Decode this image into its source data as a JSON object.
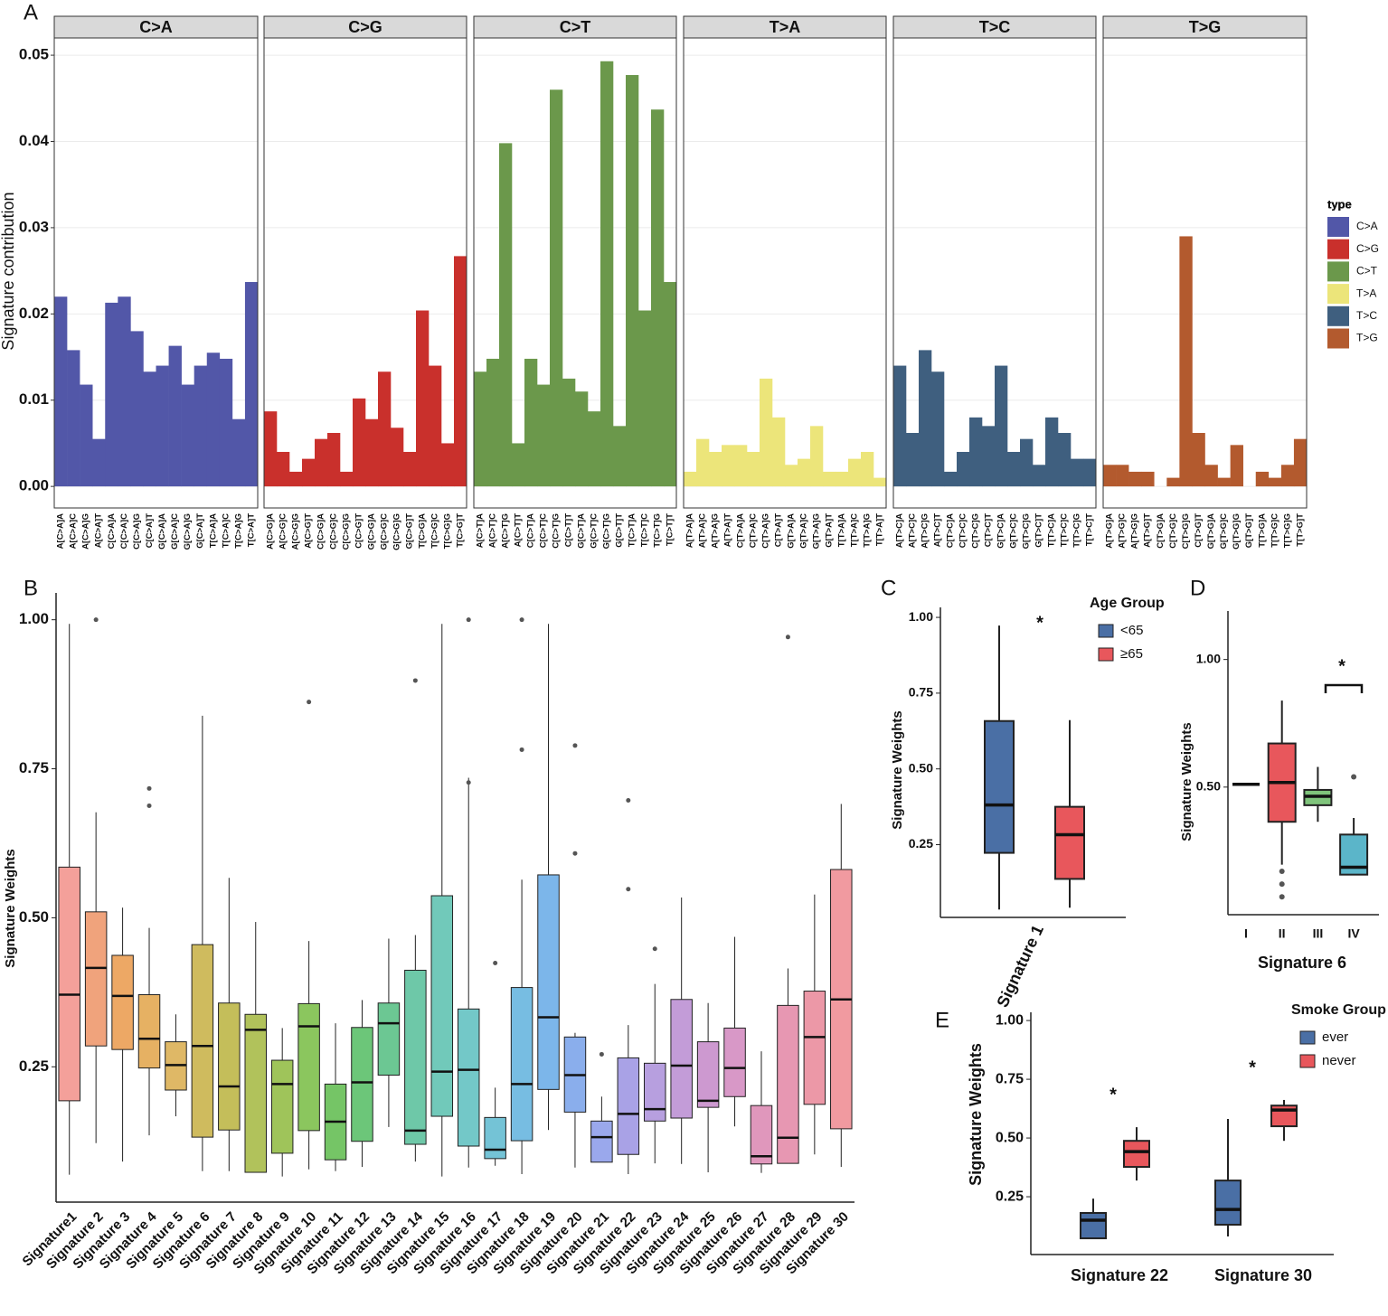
{
  "chart_data": [
    {
      "type": "bar",
      "panel": "A",
      "ylabel": "Signature contribution",
      "ylim": [
        -0.0025,
        0.052
      ],
      "yticks": [
        {
          "value": 0,
          "label": "0.00"
        },
        0.01,
        0.02,
        0.03,
        0.04,
        0.05
      ],
      "grid": true,
      "legend_title": "type",
      "facets": [
        {
          "title": "C>A",
          "color": "#5257a8",
          "categories": [
            "A[C>A]A",
            "A[C>A]C",
            "A[C>A]G",
            "A[C>A]T",
            "C[C>A]A",
            "C[C>A]C",
            "C[C>A]G",
            "C[C>A]T",
            "G[C>A]A",
            "G[C>A]C",
            "G[C>A]G",
            "G[C>A]T",
            "T[C>A]A",
            "T[C>A]C",
            "T[C>A]G",
            "T[C>A]T"
          ],
          "values": [
            0.022,
            0.0158,
            0.0118,
            0.0055,
            0.0213,
            0.022,
            0.018,
            0.0133,
            0.014,
            0.0163,
            0.0118,
            0.014,
            0.0155,
            0.0148,
            0.0078,
            0.0237
          ]
        },
        {
          "title": "C>G",
          "color": "#c9302c",
          "categories": [
            "A[C>G]A",
            "A[C>G]C",
            "A[C>G]G",
            "A[C>G]T",
            "C[C>G]A",
            "C[C>G]C",
            "C[C>G]G",
            "C[C>G]T",
            "G[C>G]A",
            "G[C>G]C",
            "G[C>G]G",
            "G[C>G]T",
            "T[C>G]A",
            "T[C>G]C",
            "T[C>G]G",
            "T[C>G]T"
          ],
          "values": [
            0.0087,
            0.004,
            0.0017,
            0.0032,
            0.0055,
            0.0062,
            0.0017,
            0.0102,
            0.0078,
            0.0133,
            0.0068,
            0.004,
            0.0204,
            0.014,
            0.005,
            0.0267
          ]
        },
        {
          "title": "C>T",
          "color": "#6b984b",
          "categories": [
            "A[C>T]A",
            "A[C>T]C",
            "A[C>T]G",
            "A[C>T]T",
            "C[C>T]A",
            "C[C>T]C",
            "C[C>T]G",
            "C[C>T]T",
            "G[C>T]A",
            "G[C>T]C",
            "G[C>T]G",
            "G[C>T]T",
            "T[C>T]A",
            "T[C>T]C",
            "T[C>T]G",
            "T[C>T]T"
          ],
          "values": [
            0.0133,
            0.0148,
            0.0398,
            0.005,
            0.0148,
            0.0118,
            0.046,
            0.0125,
            0.011,
            0.0087,
            0.0493,
            0.007,
            0.0477,
            0.0204,
            0.0437,
            0.0237
          ]
        },
        {
          "title": "T>A",
          "color": "#ece57a",
          "categories": [
            "A[T>A]A",
            "A[T>A]C",
            "A[T>A]G",
            "A[T>A]T",
            "C[T>A]A",
            "C[T>A]C",
            "C[T>A]G",
            "C[T>A]T",
            "G[T>A]A",
            "G[T>A]C",
            "G[T>A]G",
            "G[T>A]T",
            "T[T>A]A",
            "T[T>A]C",
            "T[T>A]G",
            "T[T>A]T"
          ],
          "values": [
            0.0017,
            0.0055,
            0.004,
            0.0048,
            0.0048,
            0.004,
            0.0125,
            0.008,
            0.0025,
            0.0032,
            0.007,
            0.0017,
            0.0017,
            0.0032,
            0.004,
            0.001
          ]
        },
        {
          "title": "T>C",
          "color": "#3f5f7f",
          "categories": [
            "A[T>C]A",
            "A[T>C]C",
            "A[T>C]G",
            "A[T>C]T",
            "C[T>C]A",
            "C[T>C]C",
            "C[T>C]G",
            "C[T>C]T",
            "G[T>C]A",
            "G[T>C]C",
            "G[T>C]G",
            "G[T>C]T",
            "T[T>C]A",
            "T[T>C]C",
            "T[T>C]G",
            "T[T>C]T"
          ],
          "values": [
            0.014,
            0.0062,
            0.0158,
            0.0133,
            0.0017,
            0.004,
            0.008,
            0.007,
            0.014,
            0.004,
            0.0055,
            0.0025,
            0.008,
            0.0062,
            0.0032,
            0.0032
          ]
        },
        {
          "title": "T>G",
          "color": "#b35a2e",
          "categories": [
            "A[T>G]A",
            "A[T>G]C",
            "A[T>G]G",
            "A[T>G]T",
            "C[T>G]A",
            "C[T>G]C",
            "C[T>G]G",
            "C[T>G]T",
            "G[T>G]A",
            "G[T>G]C",
            "G[T>G]G",
            "G[T>G]T",
            "T[T>G]A",
            "T[T>G]C",
            "T[T>G]G",
            "T[T>G]T"
          ],
          "values": [
            0.0025,
            0.0025,
            0.0017,
            0.0017,
            0,
            0.001,
            0.029,
            0.0062,
            0.0025,
            0.001,
            0.0048,
            0,
            0.0017,
            0.001,
            0.0025,
            0.0055
          ]
        }
      ]
    },
    {
      "type": "box",
      "panel": "B",
      "ylabel": "Signature Weights",
      "ylim": [
        0.023,
        1.045
      ],
      "yticks": [
        0.25,
        {
          "value": 0.5,
          "label": "0.50"
        },
        0.75,
        {
          "value": 1,
          "label": "1.00"
        }
      ],
      "categories": [
        "Signature1",
        "Signature 2",
        "Signature 3",
        "Signature 4",
        "Signature 5",
        "Signature 6",
        "Signature 7",
        "Signature 8",
        "Signature 9",
        "Signature 10",
        "Signature 11",
        "Signature 12",
        "Signature 13",
        "Signature 14",
        "Signature 15",
        "Signature 16",
        "Signature 17",
        "Signature 18",
        "Signature 19",
        "Signature 20",
        "Signature 21",
        "Signature 22",
        "Signature 23",
        "Signature 24",
        "Signature 25",
        "Signature 26",
        "Signature 27",
        "Signature 28",
        "Signature 29",
        "Signature 30"
      ],
      "series": [
        {
          "colors": [
            "#f4a09a",
            "#f0a37c",
            "#eda865",
            "#e6b163",
            "#dfb866",
            "#cfbb5e",
            "#c4be5a",
            "#b1c25b",
            "#9fc45a",
            "#8bc65e",
            "#75c566",
            "#6cc679",
            "#6cc793",
            "#6ec8a8",
            "#71c9ba",
            "#73c8c8",
            "#74c3d6",
            "#77bde2",
            "#7cb6ea",
            "#8aaeec",
            "#9aa8ec",
            "#a9a2e6",
            "#b79fdf",
            "#c39cd8",
            "#cd99d0",
            "#d898c7",
            "#e097bc",
            "#e797b2",
            "#ec98a7",
            "#f19aa0"
          ],
          "min": [
            0.069,
            0.122,
            0.091,
            0.135,
            0.167,
            0.075,
            0.075,
            0.073,
            0.066,
            0.078,
            0.075,
            0.082,
            0.149,
            0.091,
            0.066,
            0.081,
            0.084,
            0.07,
            0.144,
            0.081,
            0.09,
            0.07,
            0.088,
            0.087,
            0.073,
            0.15,
            0.072,
            0.088,
            0.103,
            0.082
          ],
          "q1": [
            0.193,
            0.285,
            0.279,
            0.248,
            0.211,
            0.132,
            0.144,
            0.073,
            0.105,
            0.143,
            0.094,
            0.125,
            0.236,
            0.12,
            0.167,
            0.117,
            0.096,
            0.126,
            0.212,
            0.174,
            0.09,
            0.103,
            0.159,
            0.164,
            0.182,
            0.2,
            0.087,
            0.088,
            0.187,
            0.146
          ],
          "median": [
            0.371,
            0.416,
            0.369,
            0.297,
            0.253,
            0.285,
            0.217,
            0.312,
            0.221,
            0.318,
            0.158,
            0.224,
            0.323,
            0.143,
            0.242,
            0.245,
            0.111,
            0.221,
            0.333,
            0.236,
            0.132,
            0.171,
            0.179,
            0.252,
            0.193,
            0.248,
            0.1,
            0.131,
            0.3,
            0.363
          ],
          "q3": [
            0.585,
            0.51,
            0.437,
            0.371,
            0.292,
            0.455,
            0.357,
            0.338,
            0.261,
            0.356,
            0.221,
            0.316,
            0.357,
            0.412,
            0.537,
            0.347,
            0.165,
            0.383,
            0.572,
            0.3,
            0.159,
            0.265,
            0.256,
            0.363,
            0.292,
            0.315,
            0.185,
            0.353,
            0.377,
            0.581
          ],
          "max": [
            0.993,
            0.677,
            0.517,
            0.483,
            0.338,
            0.839,
            0.567,
            0.493,
            0.315,
            0.461,
            0.323,
            0.362,
            0.465,
            0.471,
            0.993,
            0.735,
            0.215,
            0.564,
            0.993,
            0.307,
            0.2,
            0.32,
            0.389,
            0.534,
            0.357,
            0.468,
            0.276,
            0.415,
            0.539,
            0.691
          ],
          "outliers": [
            [],
            [
              1
            ],
            [],
            [
              0.717,
              0.688
            ],
            [],
            [],
            [],
            [],
            [],
            [
              0.862
            ],
            [],
            [],
            [],
            [
              0.898
            ],
            [],
            [
              1,
              0.727
            ],
            [
              0.424
            ],
            [
              1,
              0.782
            ],
            [],
            [
              0.789,
              0.608
            ],
            [
              0.271
            ],
            [
              0.697,
              0.548
            ],
            [
              0.448
            ],
            [],
            [],
            [],
            [],
            [
              0.971
            ],
            [],
            []
          ]
        }
      ]
    },
    {
      "type": "box",
      "panel": "C",
      "ylabel": "Signature Weights",
      "ylim": [
        0.01,
        1.033
      ],
      "yticks": [
        0.25,
        {
          "value": 0.5,
          "label": "0.50"
        },
        0.75,
        {
          "value": 1,
          "label": "1.00"
        }
      ],
      "categories": [
        "Signature 1"
      ],
      "legend_title": "Age Group",
      "annotations": [
        "*"
      ],
      "series": [
        {
          "name": "<65",
          "color": "#4a6fa5",
          "min": [
            0.036
          ],
          "q1": [
            0.223
          ],
          "median": [
            0.381
          ],
          "q3": [
            0.658
          ],
          "max": [
            0.973
          ]
        },
        {
          "name": "≥65",
          "color": "#e8575c",
          "min": [
            0.042
          ],
          "q1": [
            0.137
          ],
          "median": [
            0.283
          ],
          "q3": [
            0.375
          ],
          "max": [
            0.661
          ]
        }
      ]
    },
    {
      "type": "box",
      "panel": "D",
      "ylabel": "Signature Weights",
      "xlabel": "Signature 6",
      "ylim": [
        0,
        1.19
      ],
      "yticks": [
        {
          "value": 0.5,
          "label": "0.50"
        },
        {
          "value": 1,
          "label": "1.00"
        }
      ],
      "categories": [
        "I",
        "II",
        "III",
        "IV"
      ],
      "annotations": [
        "*"
      ],
      "series": [
        {
          "colors": [
            "#222222",
            "#e8575c",
            "#7fc47b",
            "#5bb5c9"
          ],
          "min": [
            0.511,
            0.196,
            0.364,
            0.157
          ],
          "q1": [
            0.511,
            0.364,
            0.429,
            0.157
          ],
          "median": [
            0.511,
            0.518,
            0.464,
            0.186
          ],
          "q3": [
            0.511,
            0.671,
            0.489,
            0.314
          ],
          "max": [
            0.511,
            0.839,
            0.579,
            0.379
          ],
          "outliers": [
            [],
            [
              0.17,
              0.12,
              0.07
            ],
            [],
            [
              0.54
            ]
          ]
        }
      ]
    },
    {
      "type": "box",
      "panel": "E",
      "ylabel": "Signature Weights",
      "ylim": [
        0.004,
        1.035
      ],
      "yticks": [
        0.25,
        {
          "value": 0.5,
          "label": "0.50"
        },
        0.75,
        {
          "value": 1,
          "label": "1.00"
        }
      ],
      "categories": [
        "Signature 22",
        "Signature 30"
      ],
      "legend_title": "Smoke Group",
      "annotations": [
        "*",
        "*"
      ],
      "series": [
        {
          "name": "ever",
          "color": "#4a6fa5",
          "min": [
            0.073,
            0.081
          ],
          "q1": [
            0.073,
            0.131
          ],
          "median": [
            0.15,
            0.196
          ],
          "q3": [
            0.181,
            0.319
          ],
          "max": [
            0.242,
            0.581
          ]
        },
        {
          "name": "never",
          "color": "#e8575c",
          "min": [
            0.319,
            0.488
          ],
          "q1": [
            0.377,
            0.55
          ],
          "median": [
            0.442,
            0.619
          ],
          "q3": [
            0.488,
            0.638
          ],
          "max": [
            0.546,
            0.662
          ]
        }
      ]
    }
  ]
}
